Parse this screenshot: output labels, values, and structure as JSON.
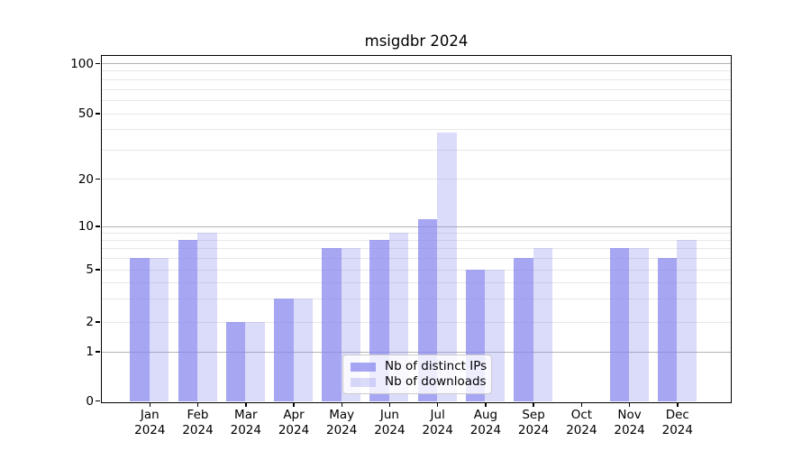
{
  "title": "msigdbr 2024",
  "chart_data": {
    "type": "bar",
    "title": "msigdbr 2024",
    "categories": [
      {
        "month": "Jan",
        "year": "2024"
      },
      {
        "month": "Feb",
        "year": "2024"
      },
      {
        "month": "Mar",
        "year": "2024"
      },
      {
        "month": "Apr",
        "year": "2024"
      },
      {
        "month": "May",
        "year": "2024"
      },
      {
        "month": "Jun",
        "year": "2024"
      },
      {
        "month": "Jul",
        "year": "2024"
      },
      {
        "month": "Aug",
        "year": "2024"
      },
      {
        "month": "Sep",
        "year": "2024"
      },
      {
        "month": "Oct",
        "year": "2024"
      },
      {
        "month": "Nov",
        "year": "2024"
      },
      {
        "month": "Dec",
        "year": "2024"
      }
    ],
    "series": [
      {
        "name": "Nb of distinct IPs",
        "color": "rgba(136,136,238,0.75)",
        "values": [
          6,
          8,
          2,
          3,
          7,
          8,
          11,
          5,
          6,
          0,
          7,
          6
        ]
      },
      {
        "name": "Nb of downloads",
        "color": "rgba(136,136,238,0.30)",
        "values": [
          6,
          9,
          2,
          3,
          7,
          9,
          38,
          5,
          7,
          0,
          7,
          8
        ]
      }
    ],
    "yscale": "symlog",
    "yticks": [
      0,
      1,
      2,
      5,
      10,
      20,
      50,
      100
    ],
    "ylim": [
      0,
      111
    ],
    "xlabel": "",
    "ylabel": "",
    "legend_position": "lower center",
    "grid": "horizontal major and minor",
    "colors": {
      "bar_base": "#8888ee",
      "grid_major": "#b2b2b2",
      "grid_minor": "#e7e7e7",
      "axis": "#000000",
      "legend_border": "#cccccc"
    }
  }
}
